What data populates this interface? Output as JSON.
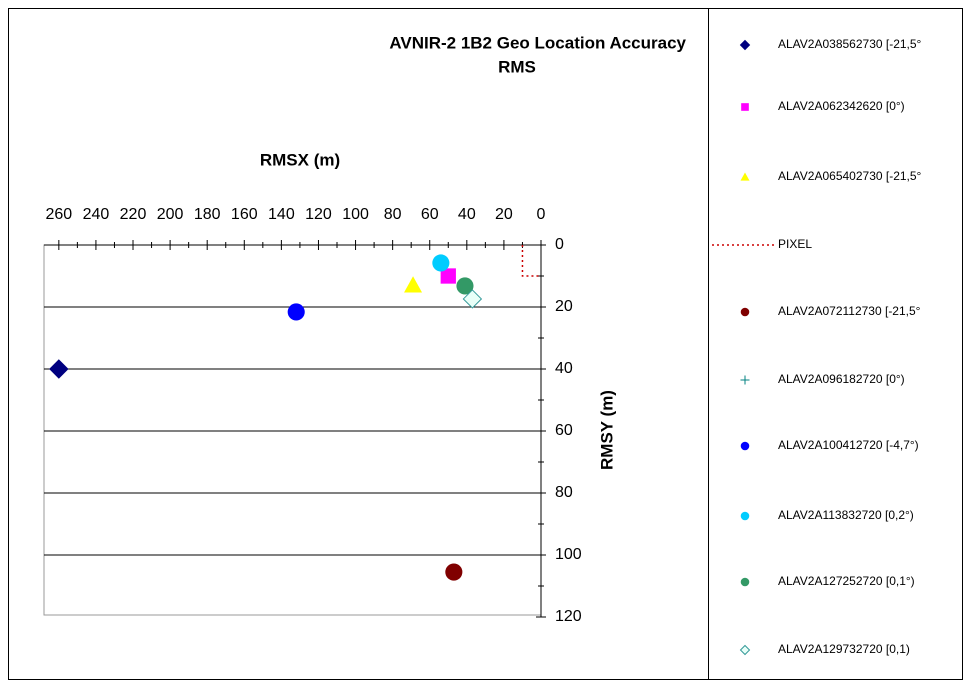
{
  "chart_data": {
    "type": "scatter",
    "title": [
      "AVNIR-2 1B2 Geo Location Accuracy",
      "RMS"
    ],
    "x_label": "RMSX (m)",
    "y_label": "RMSY (m)",
    "xlim": [
      0,
      268
    ],
    "x_reversed": true,
    "xticks": [
      0,
      20,
      40,
      60,
      80,
      100,
      120,
      140,
      160,
      180,
      200,
      220,
      240,
      260
    ],
    "ylim": [
      0,
      120
    ],
    "y_reversed": true,
    "yticks": [
      0,
      20,
      40,
      60,
      80,
      100,
      120
    ],
    "grid": true,
    "legend": "right",
    "series": [
      {
        "name": "ALAV2A038562730 [-21,5°",
        "color": "#000080",
        "marker": "diamond",
        "x": [
          260
        ],
        "values": [
          40
        ]
      },
      {
        "name": "ALAV2A062342620 [0°)",
        "color": "#ff00ff",
        "marker": "square",
        "x": [
          50
        ],
        "values": [
          10
        ]
      },
      {
        "name": "ALAV2A065402730 [-21,5°",
        "color": "#ffff00",
        "marker": "triangle",
        "x": [
          69
        ],
        "values": [
          13
        ]
      },
      {
        "name": "PIXEL",
        "color": "#cc0000",
        "marker": "dotted-line",
        "x": [
          10,
          10,
          0
        ],
        "values": [
          0,
          10,
          10
        ]
      },
      {
        "name": "ALAV2A072112730 [-21,5°",
        "color": "#800000",
        "marker": "circle",
        "x": [
          47
        ],
        "values": [
          105.5
        ]
      },
      {
        "name": "ALAV2A096182720 [0°)",
        "color": "#008080",
        "marker": "plus",
        "x": [],
        "values": []
      },
      {
        "name": "ALAV2A100412720 [-4,7°)",
        "color": "#0000ff",
        "marker": "circle",
        "x": [
          132
        ],
        "values": [
          21.6
        ]
      },
      {
        "name": "ALAV2A113832720 [0,2°)",
        "color": "#00ccff",
        "marker": "circle",
        "x": [
          54
        ],
        "values": [
          5.8
        ]
      },
      {
        "name": "ALAV2A127252720 [0,1°)",
        "color": "#339966",
        "marker": "circle",
        "x": [
          41
        ],
        "values": [
          13.2
        ]
      },
      {
        "name": "ALAV2A129732720 [0,1)",
        "color": "#339999",
        "marker": "open-diamond",
        "x": [
          37
        ],
        "values": [
          17.4
        ]
      }
    ]
  }
}
